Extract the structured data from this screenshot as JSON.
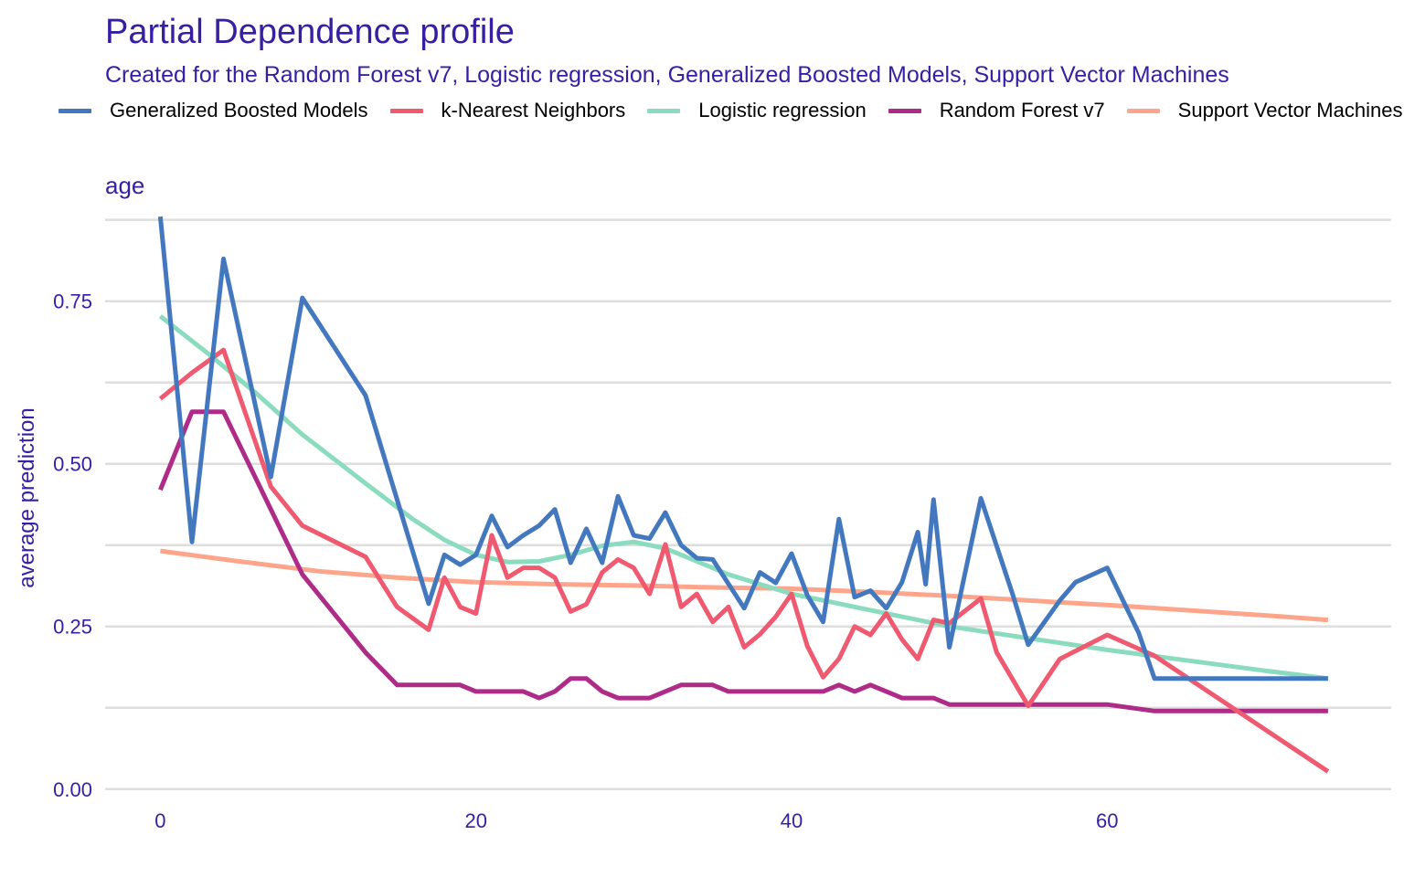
{
  "chart_data": {
    "type": "line",
    "title": "Partial Dependence profile",
    "subtitle": "Created for the Random Forest v7, Logistic regression, Generalized Boosted Models, Support Vector Machines",
    "facet_label": "age",
    "xlabel": "",
    "ylabel": "average prediction",
    "xlim": [
      -3.5,
      78
    ],
    "ylim": [
      -0.02,
      0.89
    ],
    "xticks": [
      0,
      20,
      40,
      60
    ],
    "yticks": [
      0.0,
      0.25,
      0.5,
      0.75
    ],
    "ytick_labels": [
      "0.00",
      "0.25",
      "0.50",
      "0.75"
    ],
    "legend_position": "top",
    "series": [
      {
        "name": "Generalized Boosted Models",
        "color": "#4378bf",
        "points": [
          [
            0,
            0.88
          ],
          [
            2,
            0.38
          ],
          [
            4,
            0.815
          ],
          [
            7,
            0.48
          ],
          [
            9,
            0.755
          ],
          [
            13,
            0.605
          ],
          [
            17,
            0.285
          ],
          [
            18,
            0.36
          ],
          [
            19,
            0.345
          ],
          [
            20,
            0.36
          ],
          [
            21,
            0.42
          ],
          [
            22,
            0.372
          ],
          [
            23,
            0.39
          ],
          [
            24,
            0.405
          ],
          [
            25,
            0.43
          ],
          [
            26,
            0.348
          ],
          [
            27,
            0.4
          ],
          [
            28,
            0.348
          ],
          [
            29,
            0.45
          ],
          [
            30,
            0.39
          ],
          [
            31,
            0.385
          ],
          [
            32,
            0.425
          ],
          [
            33,
            0.375
          ],
          [
            34,
            0.355
          ],
          [
            35,
            0.353
          ],
          [
            37,
            0.278
          ],
          [
            38,
            0.333
          ],
          [
            39,
            0.317
          ],
          [
            40,
            0.362
          ],
          [
            41,
            0.298
          ],
          [
            42,
            0.257
          ],
          [
            43,
            0.415
          ],
          [
            44,
            0.295
          ],
          [
            45,
            0.305
          ],
          [
            46,
            0.278
          ],
          [
            47,
            0.318
          ],
          [
            48,
            0.395
          ],
          [
            48.5,
            0.315
          ],
          [
            49,
            0.445
          ],
          [
            50,
            0.218
          ],
          [
            52,
            0.447
          ],
          [
            54,
            0.3
          ],
          [
            55,
            0.222
          ],
          [
            57,
            0.29
          ],
          [
            58,
            0.318
          ],
          [
            60,
            0.34
          ],
          [
            62,
            0.24
          ],
          [
            63,
            0.17
          ],
          [
            74,
            0.17
          ]
        ]
      },
      {
        "name": "k-Nearest Neighbors",
        "color": "#f05a71",
        "points": [
          [
            0,
            0.6
          ],
          [
            2,
            0.64
          ],
          [
            4,
            0.675
          ],
          [
            7,
            0.465
          ],
          [
            9,
            0.405
          ],
          [
            13,
            0.357
          ],
          [
            15,
            0.28
          ],
          [
            17,
            0.245
          ],
          [
            18,
            0.325
          ],
          [
            19,
            0.28
          ],
          [
            20,
            0.27
          ],
          [
            21,
            0.39
          ],
          [
            22,
            0.325
          ],
          [
            23,
            0.34
          ],
          [
            24,
            0.34
          ],
          [
            25,
            0.325
          ],
          [
            26,
            0.273
          ],
          [
            27,
            0.284
          ],
          [
            28,
            0.333
          ],
          [
            29,
            0.353
          ],
          [
            30,
            0.34
          ],
          [
            31,
            0.3
          ],
          [
            32,
            0.376
          ],
          [
            33,
            0.28
          ],
          [
            34,
            0.3
          ],
          [
            35,
            0.257
          ],
          [
            36,
            0.28
          ],
          [
            37,
            0.218
          ],
          [
            38,
            0.238
          ],
          [
            39,
            0.265
          ],
          [
            40,
            0.3
          ],
          [
            41,
            0.22
          ],
          [
            42,
            0.172
          ],
          [
            43,
            0.2
          ],
          [
            44,
            0.25
          ],
          [
            45,
            0.237
          ],
          [
            46,
            0.27
          ],
          [
            47,
            0.23
          ],
          [
            48,
            0.2
          ],
          [
            49,
            0.26
          ],
          [
            50,
            0.255
          ],
          [
            52,
            0.293
          ],
          [
            53,
            0.21
          ],
          [
            55,
            0.128
          ],
          [
            57,
            0.2
          ],
          [
            60,
            0.237
          ],
          [
            63,
            0.205
          ],
          [
            74,
            0.027
          ]
        ]
      },
      {
        "name": "Logistic regression",
        "color": "#8bdcbe",
        "points": [
          [
            0,
            0.727
          ],
          [
            3,
            0.67
          ],
          [
            6,
            0.61
          ],
          [
            9,
            0.545
          ],
          [
            13,
            0.47
          ],
          [
            16,
            0.415
          ],
          [
            18,
            0.383
          ],
          [
            20,
            0.36
          ],
          [
            22,
            0.349
          ],
          [
            24,
            0.35
          ],
          [
            26,
            0.36
          ],
          [
            28,
            0.374
          ],
          [
            30,
            0.38
          ],
          [
            32,
            0.37
          ],
          [
            34,
            0.35
          ],
          [
            36,
            0.33
          ],
          [
            40,
            0.3
          ],
          [
            45,
            0.275
          ],
          [
            50,
            0.25
          ],
          [
            55,
            0.232
          ],
          [
            60,
            0.214
          ],
          [
            65,
            0.198
          ],
          [
            70,
            0.182
          ],
          [
            74,
            0.17
          ]
        ]
      },
      {
        "name": "Random Forest v7",
        "color": "#ae2c87",
        "points": [
          [
            0,
            0.46
          ],
          [
            2,
            0.58
          ],
          [
            4,
            0.58
          ],
          [
            9,
            0.33
          ],
          [
            13,
            0.21
          ],
          [
            15,
            0.16
          ],
          [
            19,
            0.16
          ],
          [
            20,
            0.15
          ],
          [
            23,
            0.15
          ],
          [
            24,
            0.14
          ],
          [
            25,
            0.15
          ],
          [
            26,
            0.17
          ],
          [
            27,
            0.17
          ],
          [
            28,
            0.15
          ],
          [
            29,
            0.14
          ],
          [
            31,
            0.14
          ],
          [
            33,
            0.16
          ],
          [
            35,
            0.16
          ],
          [
            36,
            0.15
          ],
          [
            42,
            0.15
          ],
          [
            43,
            0.16
          ],
          [
            44,
            0.15
          ],
          [
            45,
            0.16
          ],
          [
            46,
            0.15
          ],
          [
            47,
            0.14
          ],
          [
            49,
            0.14
          ],
          [
            50,
            0.13
          ],
          [
            60,
            0.13
          ],
          [
            63,
            0.12
          ],
          [
            74,
            0.12
          ]
        ]
      },
      {
        "name": "Support Vector Machines",
        "color": "#ffa58c",
        "points": [
          [
            0,
            0.366
          ],
          [
            5,
            0.35
          ],
          [
            10,
            0.335
          ],
          [
            15,
            0.325
          ],
          [
            20,
            0.318
          ],
          [
            25,
            0.315
          ],
          [
            30,
            0.313
          ],
          [
            35,
            0.31
          ],
          [
            40,
            0.308
          ],
          [
            45,
            0.303
          ],
          [
            50,
            0.297
          ],
          [
            55,
            0.29
          ],
          [
            60,
            0.283
          ],
          [
            65,
            0.275
          ],
          [
            70,
            0.267
          ],
          [
            74,
            0.26
          ]
        ]
      }
    ]
  }
}
